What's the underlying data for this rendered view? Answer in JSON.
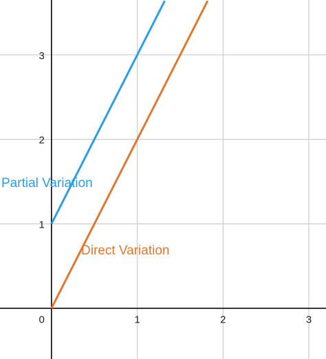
{
  "chart_data": {
    "type": "line",
    "x_ticks": [
      "0",
      "1",
      "2",
      "3"
    ],
    "y_ticks": [
      "1",
      "2",
      "3"
    ],
    "xlim": [
      -0.6,
      3.2
    ],
    "ylim": [
      -0.6,
      3.65
    ],
    "grid": true,
    "series": [
      {
        "name": "Partial Variation",
        "color": "#2d9cea",
        "points": [
          [
            0,
            1
          ],
          [
            1,
            3
          ],
          [
            1.32,
            3.64
          ]
        ]
      },
      {
        "name": "Direct Variation",
        "color": "#e07830",
        "points": [
          [
            0,
            0
          ],
          [
            1,
            2
          ],
          [
            1.82,
            3.64
          ]
        ]
      }
    ]
  }
}
